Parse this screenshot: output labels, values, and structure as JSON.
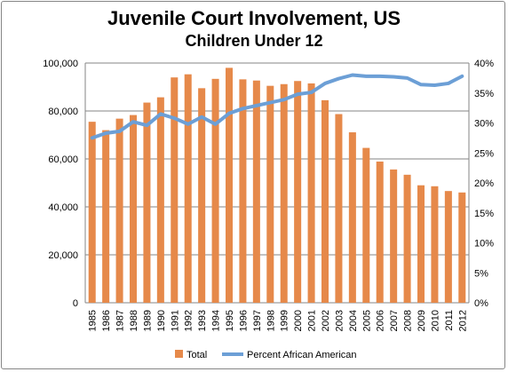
{
  "chart_data": {
    "type": "bar",
    "title": "Juvenile Court Involvement, US",
    "subtitle": "Children Under 12",
    "categories": [
      "1985",
      "1986",
      "1987",
      "1988",
      "1989",
      "1990",
      "1991",
      "1992",
      "1993",
      "1994",
      "1995",
      "1996",
      "1997",
      "1998",
      "1999",
      "2000",
      "2001",
      "2002",
      "2003",
      "2004",
      "2005",
      "2006",
      "2007",
      "2008",
      "2009",
      "2010",
      "2011",
      "2012"
    ],
    "series": [
      {
        "name": "Total",
        "type": "bar",
        "axis": "left",
        "color": "#E6894A",
        "values": [
          75500,
          72000,
          76800,
          78300,
          83500,
          85700,
          94000,
          95300,
          89500,
          93400,
          98000,
          93200,
          92700,
          90500,
          91200,
          92500,
          91500,
          84500,
          78700,
          71100,
          64600,
          58900,
          55600,
          53400,
          49000,
          48600,
          46600,
          46000
        ]
      },
      {
        "name": "Percent African American",
        "type": "line",
        "axis": "right",
        "color": "#6C9FD6",
        "values": [
          27.5,
          28.3,
          28.6,
          30.2,
          29.6,
          31.5,
          30.8,
          29.8,
          31.0,
          29.8,
          31.6,
          32.4,
          32.9,
          33.4,
          33.9,
          34.8,
          35.1,
          36.6,
          37.4,
          38.0,
          37.8,
          37.8,
          37.7,
          37.5,
          36.4,
          36.3,
          36.6,
          37.8
        ]
      }
    ],
    "y_left": {
      "min": 0,
      "max": 100000,
      "ticks": [
        "0",
        "20,000",
        "40,000",
        "60,000",
        "80,000",
        "100,000"
      ],
      "tick_values": [
        0,
        20000,
        40000,
        60000,
        80000,
        100000
      ]
    },
    "y_right": {
      "min": 0,
      "max": 40,
      "ticks": [
        "0%",
        "5%",
        "10%",
        "15%",
        "20%",
        "25%",
        "30%",
        "35%",
        "40%"
      ],
      "tick_values": [
        0,
        5,
        10,
        15,
        20,
        25,
        30,
        35,
        40
      ]
    },
    "grid": true,
    "legend_position": "bottom"
  }
}
